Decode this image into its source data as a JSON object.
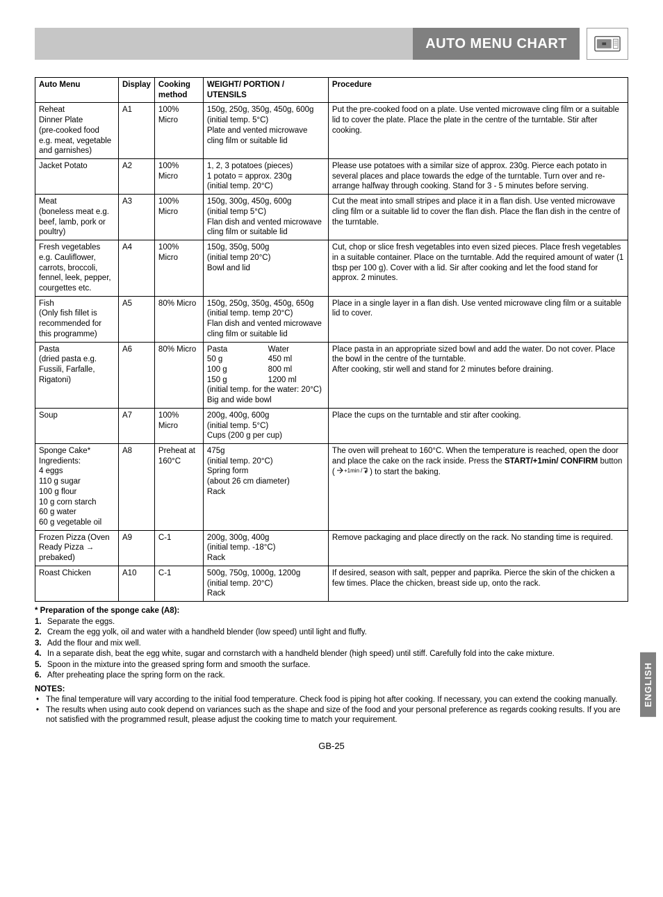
{
  "header": {
    "title": "AUTO MENU CHART"
  },
  "table": {
    "headers": [
      "Auto Menu",
      "Display",
      "Cooking method",
      "WEIGHT/ PORTION / UTENSILS",
      "Procedure"
    ],
    "rows": [
      {
        "menu": "Reheat\nDinner Plate\n(pre-cooked food e.g. meat, vegetable and garnishes)",
        "display": "A1",
        "method": "100% Micro",
        "weight": "150g, 250g, 350g, 450g, 600g\n(initial temp. 5°C)\nPlate and vented microwave cling film or suitable lid",
        "procedure": "Put the pre-cooked food on a plate. Use vented microwave cling film or a suitable lid to cover the plate. Place the plate in the centre of the turntable. Stir after cooking."
      },
      {
        "menu": "Jacket Potato",
        "display": "A2",
        "method": "100% Micro",
        "weight": "1, 2, 3  potatoes (pieces)\n1 potato = approx. 230g\n(initial temp. 20°C)",
        "procedure": "Please use potatoes with a similar size of approx. 230g. Pierce each potato in several places and place towards the edge of the turntable. Turn over and re-arrange halfway through cooking. Stand for 3 - 5 minutes before serving."
      },
      {
        "menu": "Meat\n(boneless meat e.g. beef, lamb, pork or poultry)",
        "display": "A3",
        "method": "100% Micro",
        "weight": "150g, 300g, 450g, 600g\n(initial temp 5°C)\nFlan dish and vented microwave cling film or suitable lid",
        "procedure": "Cut the meat into small stripes and place it in a flan dish. Use vented microwave cling film or a suitable lid to cover the flan dish. Place the flan dish in the centre of the turntable."
      },
      {
        "menu": "Fresh vegetables e.g. Cauliflower, carrots, broccoli, fennel, leek, pepper, courgettes etc.",
        "display": "A4",
        "method": "100% Micro",
        "weight": "150g, 350g, 500g\n(initial temp 20°C)\nBowl and lid",
        "procedure": "Cut, chop or slice fresh vegetables into even sized pieces. Place fresh vegetables in a suitable container. Place on the turntable. Add the required amount of water (1 tbsp per 100 g). Cover with a lid. Sir after cooking and let the food stand for approx. 2 minutes."
      },
      {
        "menu": "Fish\n(Only fish fillet is recommended for this programme)",
        "display": "A5",
        "method": "80% Micro",
        "weight": "150g, 250g, 350g, 450g, 650g\n(initial temp. temp 20°C)\nFlan dish and vented microwave cling film or suitable lid",
        "procedure": "Place in a single layer in a flan dish. Use vented microwave cling film or a suitable lid to cover."
      },
      {
        "menu": "Pasta\n(dried pasta e.g. Fussili, Farfalle, Rigatoni)",
        "display": "A6",
        "method": "80% Micro",
        "weight_pasta": {
          "col1_head": "Pasta",
          "col2_head": "Water",
          "rows": [
            [
              "50 g",
              "450 ml"
            ],
            [
              "100 g",
              "800 ml"
            ],
            [
              "150 g",
              "1200 ml"
            ]
          ],
          "tail": "(initial temp. for the water: 20°C)\nBig and wide bowl"
        },
        "procedure": "Place pasta in an appropriate sized bowl and add the water. Do not cover. Place the bowl in the centre of the turntable.\nAfter cooking, stir well and stand for 2 minutes before draining."
      },
      {
        "menu": "Soup",
        "display": "A7",
        "method": "100% Micro",
        "weight": "200g, 400g, 600g\n(initial temp. 5°C)\nCups (200 g per cup)",
        "procedure": "Place the cups on the turntable and stir after cooking."
      },
      {
        "menu": "Sponge Cake*\nIngredients:\n4 eggs\n110 g sugar\n100 g flour\n10 g corn starch\n60 g water\n60 g vegetable oil",
        "display": "A8",
        "method": "Preheat at 160°C",
        "weight": "475g\n(initial temp. 20°C)\nSpring form\n(about 26 cm diameter)\nRack",
        "procedure_rich": {
          "pre": "The oven will preheat to 160°C. When the temperature is reached, open the door and place the cake on the rack inside. Press the ",
          "b1": "START/+1min/ CONFIRM",
          "mid": " button ( ",
          "icon": true,
          "post": " ) to start the baking."
        }
      },
      {
        "menu": "Frozen Pizza (Oven Ready Pizza → prebaked)",
        "display": "A9",
        "method": "C-1",
        "weight": "200g, 300g, 400g\n(initial temp. -18°C)\nRack",
        "procedure": "Remove packaging and place directly on the rack. No standing time is required."
      },
      {
        "menu": "Roast Chicken",
        "display": "A10",
        "method": "C-1",
        "weight": "500g, 750g, 1000g, 1200g\n(initial temp. 20°C)\nRack",
        "procedure": "If desired, season with salt, pepper and paprika. Pierce the skin of the chicken a few times. Place the chicken, breast side up, onto the rack."
      }
    ]
  },
  "prep": {
    "heading": "* Preparation of the sponge cake (A8):",
    "steps": [
      "Separate the eggs.",
      "Cream the egg yolk, oil and water with a handheld blender (low speed) until light and fluffy.",
      "Add the flour and mix well.",
      "In a separate dish, beat the egg white, sugar and cornstarch with a handheld blender (high speed) until stiff. Carefully fold into the cake mixture.",
      "Spoon in the mixture into the greased spring form and smooth the surface.",
      "After preheating place the spring form on the rack."
    ]
  },
  "notes": {
    "heading": "NOTES:",
    "items": [
      "The final temperature will vary according to the initial food temperature. Check food is piping hot after cooking. If necessary, you can extend the cooking manually.",
      "The results when using auto cook depend on variances such as the shape and size of the food and your personal preference as regards cooking results. If you are not satisfied with the programmed result, please adjust the cooking time to match your requirement."
    ]
  },
  "sidetab": "ENGLISH",
  "pagenum": "GB-25"
}
